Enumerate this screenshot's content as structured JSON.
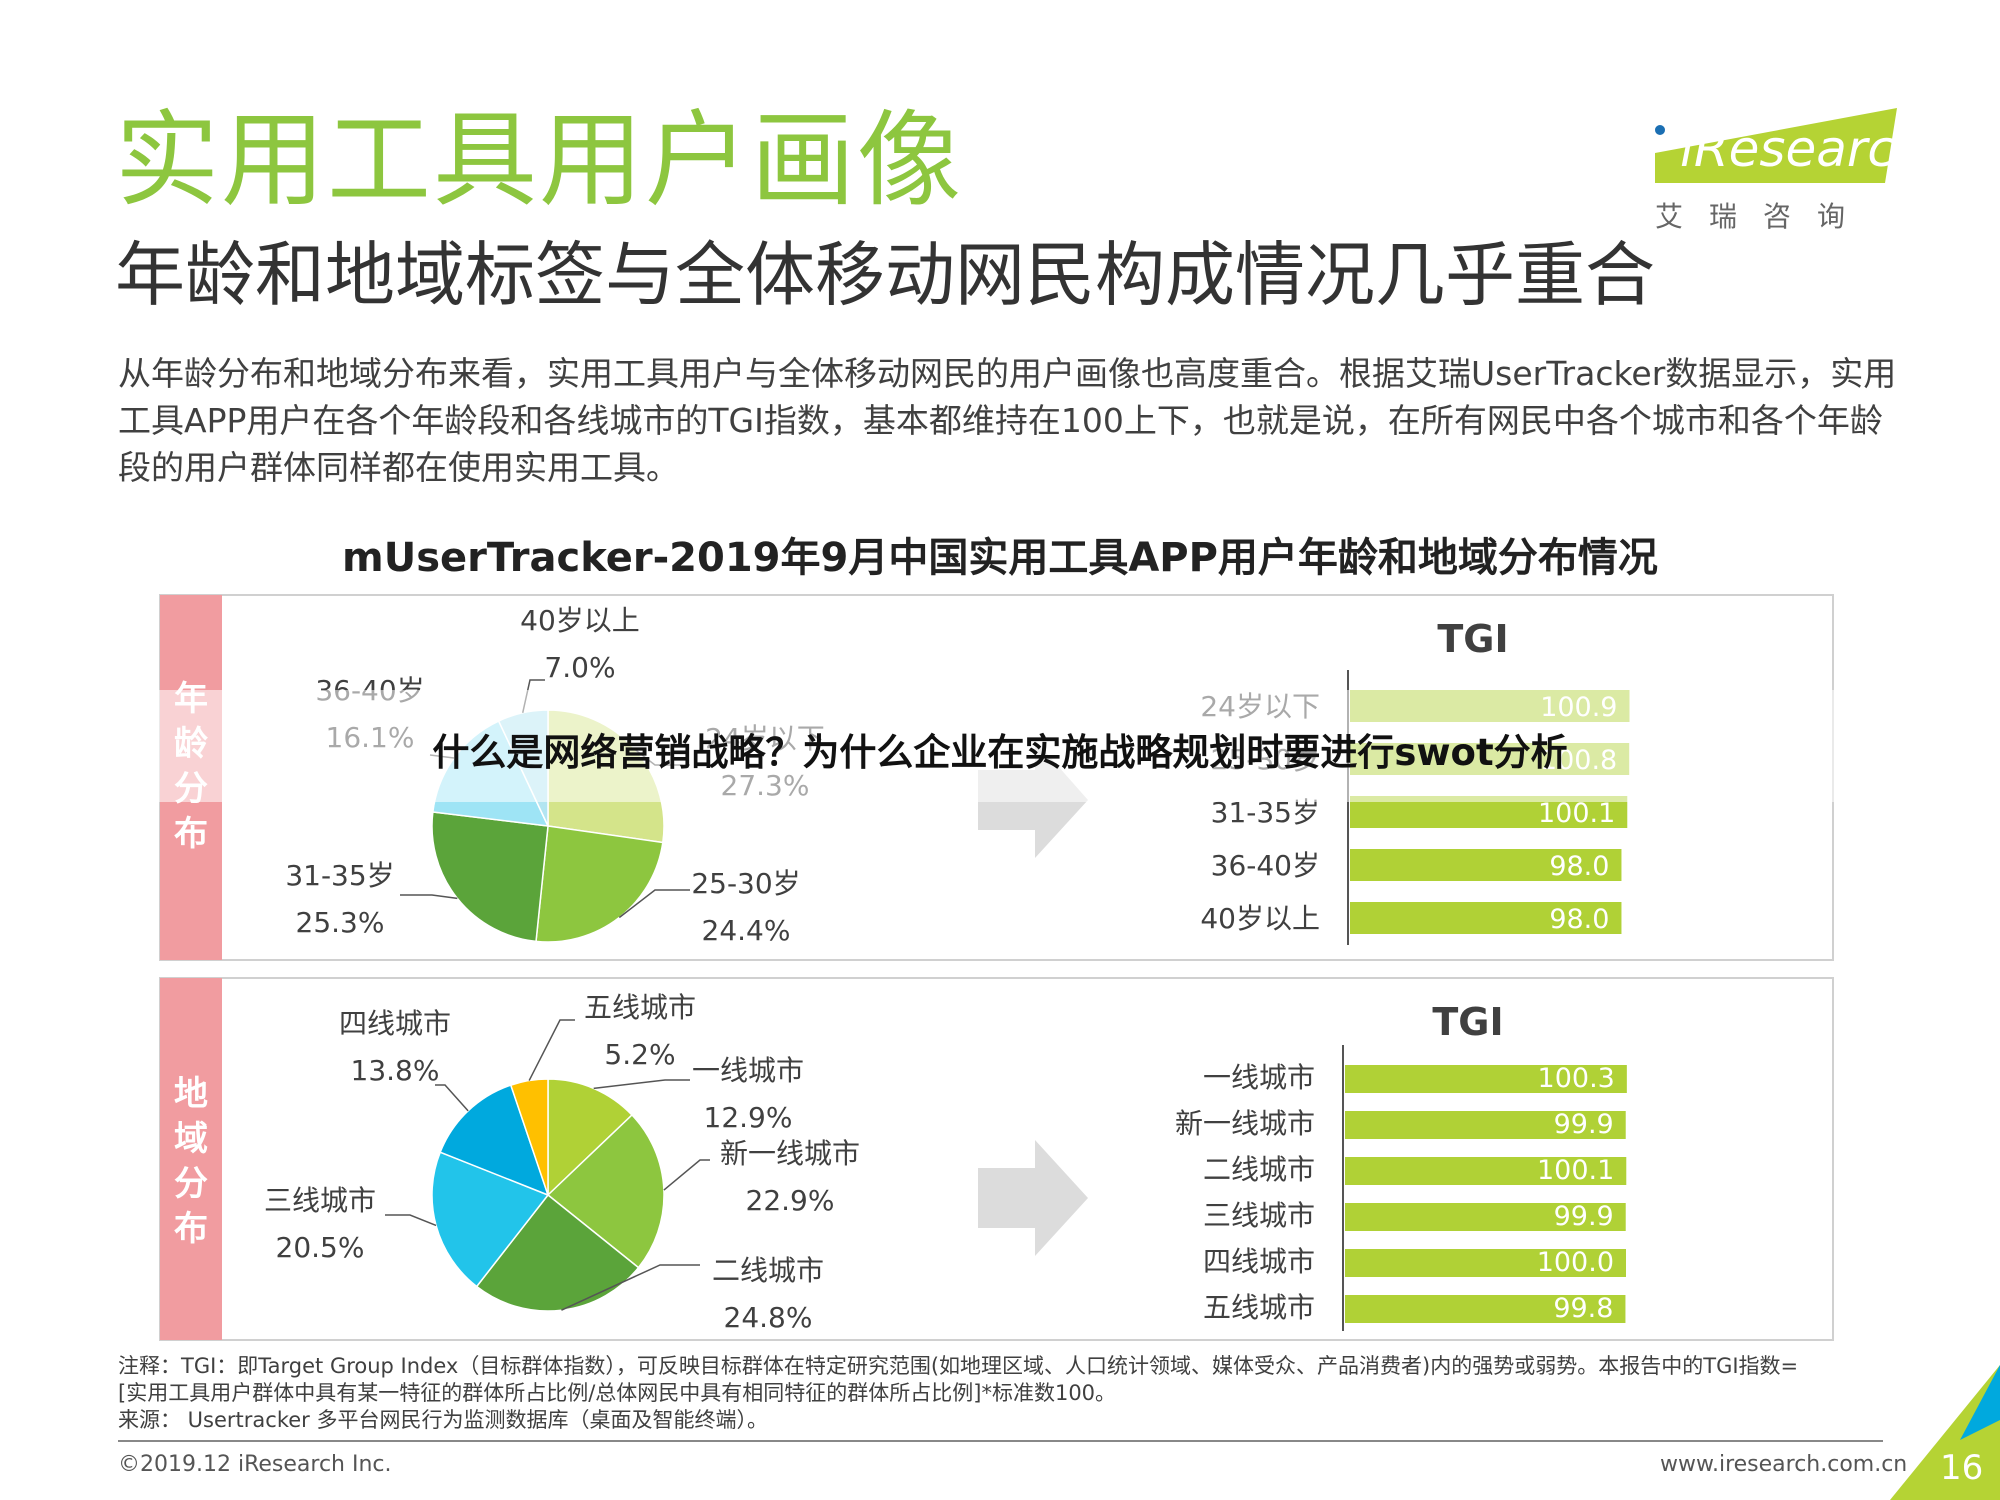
{
  "header": {
    "title": "实用工具用户画像",
    "subtitle": "年龄和地域标签与全体移动网民构成情况几乎重合",
    "body": "从年龄分布和地域分布来看，实用工具用户与全体移动网民的用户画像也高度重合。根据艾瑞UserTracker数据显示，实用工具APP用户在各个年龄段和各线城市的TGI指数，基本都维持在100上下，也就是说，在所有网民中各个城市和各个年龄段的用户群体同样都在使用实用工具。"
  },
  "logo": {
    "main": "iResearch",
    "sub": "艾瑞咨询",
    "colors": {
      "green": "#b5d334",
      "blue": "#1b6fb3"
    }
  },
  "colors": {
    "accent": "#8dc63f",
    "side_label": "#f19ca0",
    "bar": "#b0d136",
    "arrow": "#dcdcdc"
  },
  "chart_title": "mUserTracker-2019年9月中国实用工具APP用户年龄和地域分布情况",
  "chart_data": [
    {
      "type": "pie",
      "group": "年龄分布",
      "labels": [
        "24岁以下",
        "25-30岁",
        "31-35岁",
        "36-40岁",
        "40岁以上"
      ],
      "values": [
        27.3,
        24.4,
        25.3,
        16.1,
        7.0
      ],
      "value_labels": [
        "27.3%",
        "24.4%",
        "25.3%",
        "16.1%",
        "7.0%"
      ],
      "colors": [
        "#d4e48a",
        "#8dc63f",
        "#5ba43a",
        "#9ee4f5",
        "#b2e5f1"
      ]
    },
    {
      "type": "bar",
      "orientation": "horizontal",
      "group": "年龄分布",
      "title": "TGI",
      "categories": [
        "24岁以下",
        "25-30岁",
        "31-35岁",
        "36-40岁",
        "40岁以上"
      ],
      "values": [
        100.9,
        100.8,
        100.1,
        98.0,
        98.0
      ],
      "value_labels": [
        "100.9",
        "100.8",
        "100.1",
        "98.0",
        "98.0"
      ]
    },
    {
      "type": "pie",
      "group": "地域分布",
      "labels": [
        "一线城市",
        "新一线城市",
        "二线城市",
        "三线城市",
        "四线城市",
        "五线城市"
      ],
      "values": [
        12.9,
        22.9,
        24.8,
        20.5,
        13.8,
        5.2
      ],
      "value_labels": [
        "12.9%",
        "22.9%",
        "24.8%",
        "20.5%",
        "13.8%",
        "5.2%"
      ],
      "colors": [
        "#b0d136",
        "#8dc63f",
        "#5ba43a",
        "#22c4ea",
        "#00a9de",
        "#ffc000"
      ]
    },
    {
      "type": "bar",
      "orientation": "horizontal",
      "group": "地域分布",
      "title": "TGI",
      "categories": [
        "一线城市",
        "新一线城市",
        "二线城市",
        "三线城市",
        "四线城市",
        "五线城市"
      ],
      "values": [
        100.3,
        99.9,
        100.1,
        99.9,
        100.0,
        99.8
      ],
      "value_labels": [
        "100.3",
        "99.9",
        "100.1",
        "99.9",
        "100.0",
        "99.8"
      ]
    }
  ],
  "side_labels": {
    "age": "年龄分布",
    "region": "地域分布"
  },
  "note": {
    "line1": "注释：TGI：即Target Group Index（目标群体指数），可反映目标群体在特定研究范围(如地理区域、人口统计领域、媒体受众、产品消费者)内的强势或弱势。本报告中的TGI指数=",
    "line2": "[实用工具用户群体中具有某一特征的群体所占比例/总体网民中具有相同特征的群体所占比例]*标准数100。",
    "line3": "来源： Usertracker 多平台网民行为监测数据库（桌面及智能终端）。"
  },
  "footer": {
    "copyright": "©2019.12 iResearch Inc.",
    "website": "www.iresearch.com.cn",
    "page": "16"
  },
  "overlay_banner": "什么是网络营销战略？为什么企业在实施战略规划时要进行swot分析"
}
